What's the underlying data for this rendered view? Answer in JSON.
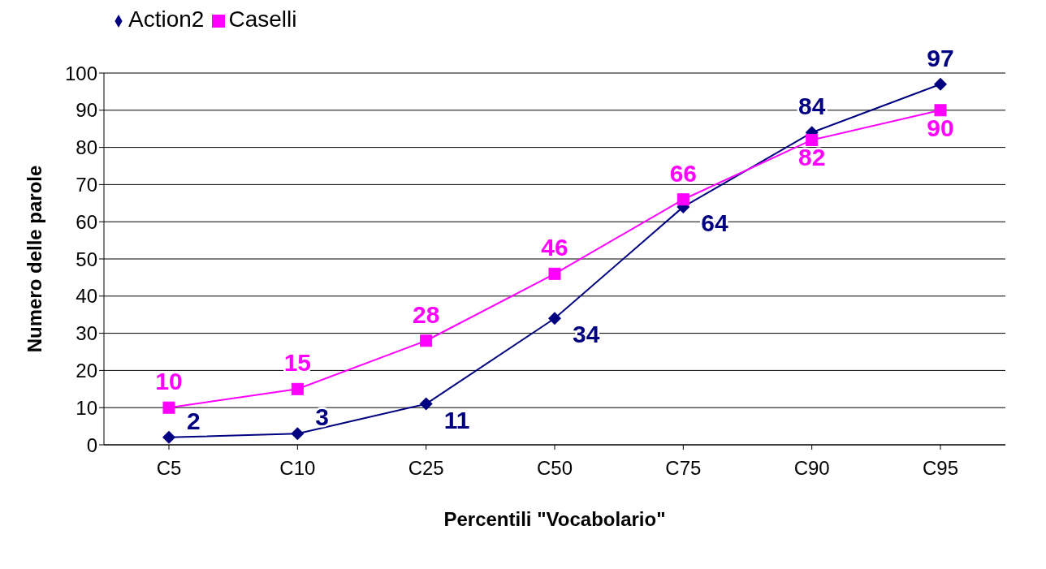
{
  "chart_data": {
    "type": "line",
    "xlabel": "Percentili \"Vocabolario\"",
    "ylabel": "Numero delle parole",
    "categories": [
      "C5",
      "C10",
      "C25",
      "C50",
      "C75",
      "C90",
      "C95"
    ],
    "series": [
      {
        "name": "Action2",
        "color": "#000080",
        "marker": "diamond",
        "values": [
          2,
          3,
          11,
          34,
          64,
          84,
          97
        ]
      },
      {
        "name": "Caselli",
        "color": "#ff00ff",
        "marker": "square",
        "values": [
          10,
          15,
          28,
          46,
          66,
          82,
          90
        ]
      }
    ],
    "ylim": [
      0,
      100
    ],
    "yticks": [
      0,
      10,
      20,
      30,
      40,
      50,
      60,
      70,
      80,
      90,
      100
    ],
    "grid": "y",
    "legend": "top left",
    "data_labels": true
  }
}
